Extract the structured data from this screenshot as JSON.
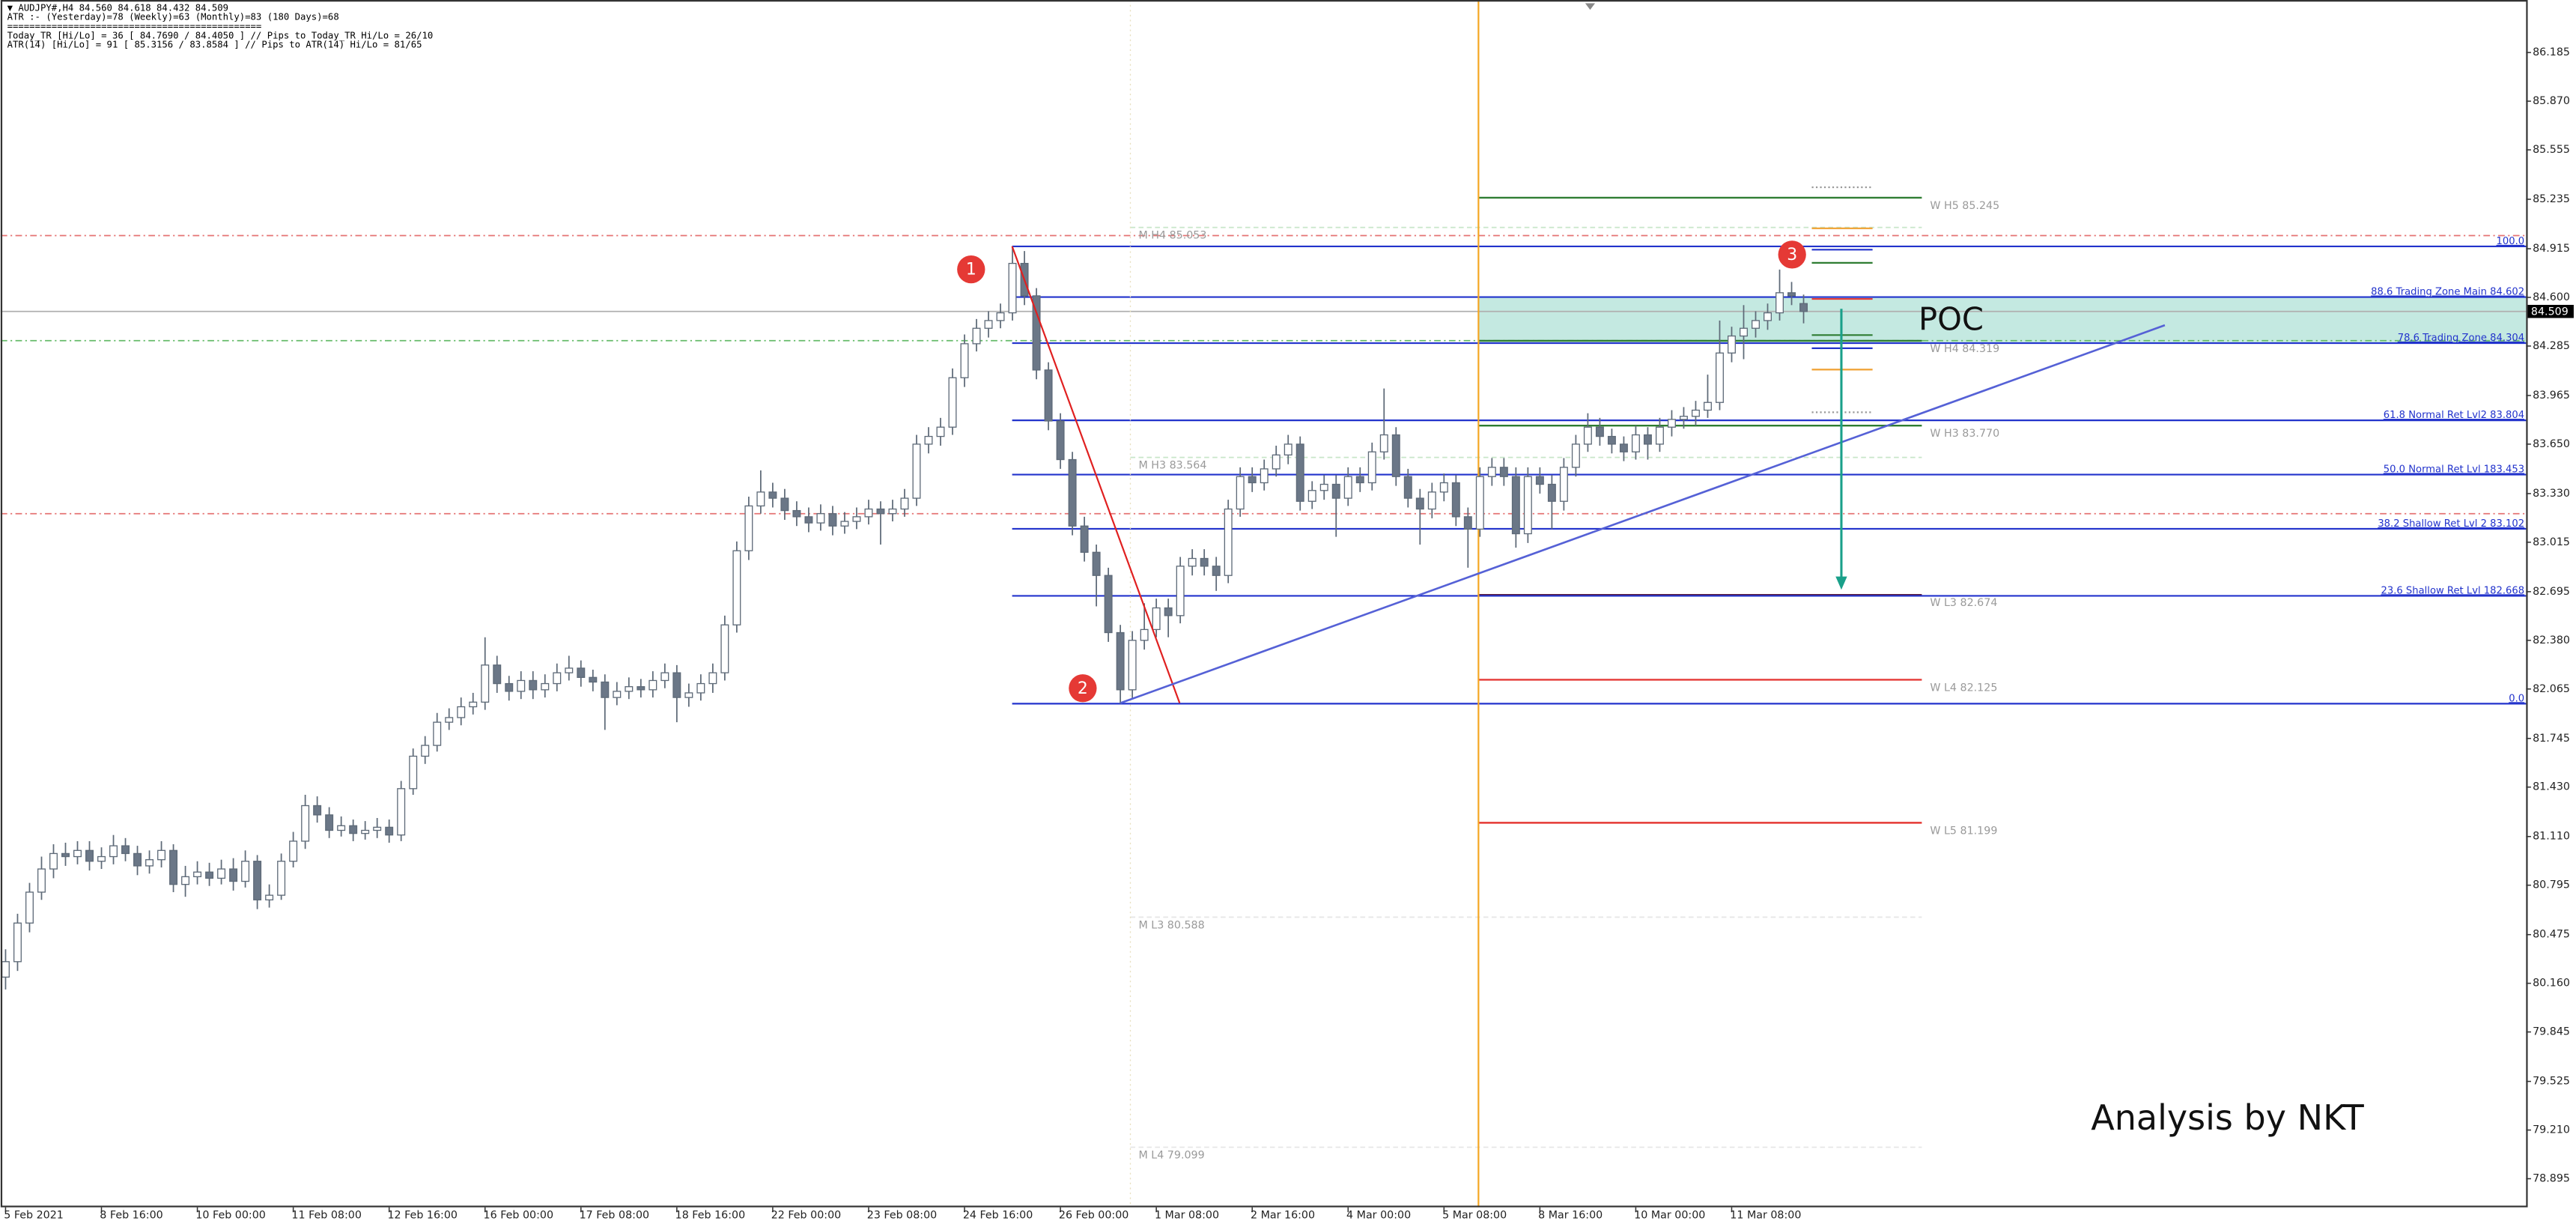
{
  "chart_data": {
    "type": "candlestick",
    "info": [
      "▼ AUDJPY#,H4  84.560 84.618 84.432 84.509",
      "ATR :- (Yesterday)=78     (Weekly)=63     (Monthly)=83     (180 Days)=68",
      "==============================================",
      "Today_TR [Hi/Lo] = 36 [ 84.7690 / 84.4050 ]   // Pips to Today_TR Hi/Lo   = 26/10",
      "ATR(14)     [Hi/Lo] = 91 [ 85.3156 / 83.8584 ]  // Pips to ATR(14) Hi/Lo     = 81/65"
    ],
    "categories": [
      "5 Feb 2021",
      null,
      null,
      null,
      null,
      null,
      null,
      null,
      "8 Feb 16:00",
      null,
      null,
      null,
      null,
      null,
      null,
      null,
      "10 Feb 00:00",
      null,
      null,
      null,
      null,
      null,
      null,
      null,
      "11 Feb 08:00",
      null,
      null,
      null,
      null,
      null,
      null,
      null,
      "12 Feb 16:00",
      null,
      null,
      null,
      null,
      null,
      null,
      null,
      "16 Feb 00:00",
      null,
      null,
      null,
      null,
      null,
      null,
      null,
      "17 Feb 08:00",
      null,
      null,
      null,
      null,
      null,
      null,
      null,
      "18 Feb 16:00",
      null,
      null,
      null,
      null,
      null,
      null,
      null,
      "22 Feb 00:00",
      null,
      null,
      null,
      null,
      null,
      null,
      null,
      "23 Feb 08:00",
      null,
      null,
      null,
      null,
      null,
      null,
      null,
      "24 Feb 16:00",
      null,
      null,
      null,
      null,
      null,
      null,
      null,
      "26 Feb 00:00",
      null,
      null,
      null,
      null,
      null,
      null,
      null,
      "1 Mar 08:00",
      null,
      null,
      null,
      null,
      null,
      null,
      null,
      "2 Mar 16:00",
      null,
      null,
      null,
      null,
      null,
      null,
      null,
      "4 Mar 00:00",
      null,
      null,
      null,
      null,
      null,
      null,
      null,
      "5 Mar 08:00",
      null,
      null,
      null,
      null,
      null,
      null,
      null,
      "8 Mar 16:00",
      null,
      null,
      null,
      null,
      null,
      null,
      null,
      "10 Mar 00:00",
      null,
      null,
      null,
      null,
      null,
      null,
      null,
      "11 Mar 08:00",
      null,
      null,
      null,
      null,
      null,
      null
    ],
    "open": [
      80.2,
      80.3,
      80.55,
      80.75,
      80.9,
      81.0,
      80.98,
      81.02,
      80.95,
      80.98,
      81.05,
      81.0,
      80.92,
      80.96,
      81.02,
      80.8,
      80.85,
      80.88,
      80.84,
      80.9,
      80.82,
      80.95,
      80.7,
      80.73,
      80.95,
      81.08,
      81.31,
      81.25,
      81.15,
      81.18,
      81.13,
      81.15,
      81.17,
      81.12,
      81.42,
      81.63,
      81.7,
      81.85,
      81.88,
      81.95,
      81.98,
      82.22,
      82.1,
      82.05,
      82.12,
      82.06,
      82.1,
      82.17,
      82.2,
      82.14,
      82.11,
      82.01,
      82.05,
      82.08,
      82.06,
      82.12,
      82.17,
      82.01,
      82.04,
      82.1,
      82.17,
      82.48,
      82.96,
      83.25,
      83.34,
      83.3,
      83.22,
      83.18,
      83.14,
      83.2,
      83.12,
      83.15,
      83.18,
      83.23,
      83.2,
      83.23,
      83.3,
      83.65,
      83.7,
      83.76,
      84.08,
      84.3,
      84.4,
      84.45,
      84.5,
      84.82,
      84.61,
      84.13,
      83.8,
      83.55,
      83.12,
      82.95,
      82.8,
      82.43,
      82.06,
      82.38,
      82.45,
      82.59,
      82.54,
      82.86,
      82.91,
      82.86,
      82.8,
      83.23,
      83.44,
      83.4,
      83.49,
      83.58,
      83.65,
      83.28,
      83.35,
      83.39,
      83.3,
      83.44,
      83.4,
      83.6,
      83.71,
      83.44,
      83.3,
      83.23,
      83.34,
      83.4,
      83.18,
      83.1,
      83.44,
      83.5,
      83.44,
      83.07,
      83.44,
      83.39,
      83.28,
      83.5,
      83.65,
      83.76,
      83.7,
      83.65,
      83.6,
      83.71,
      83.65,
      83.76,
      83.81,
      83.83,
      83.87,
      83.92,
      84.24,
      84.35,
      84.4,
      84.45,
      84.5,
      84.63,
      84.56
    ],
    "high": [
      80.38,
      80.61,
      80.81,
      80.98,
      81.06,
      81.07,
      81.08,
      81.08,
      81.04,
      81.12,
      81.1,
      81.05,
      81.02,
      81.08,
      81.06,
      80.92,
      80.95,
      80.94,
      80.96,
      80.97,
      81.02,
      80.99,
      80.8,
      81.0,
      81.14,
      81.38,
      81.37,
      81.3,
      81.24,
      81.22,
      81.21,
      81.23,
      81.22,
      81.47,
      81.68,
      81.76,
      81.91,
      81.94,
      82.01,
      82.04,
      82.4,
      82.28,
      82.15,
      82.18,
      82.18,
      82.16,
      82.23,
      82.28,
      82.25,
      82.19,
      82.16,
      82.11,
      82.14,
      82.13,
      82.18,
      82.23,
      82.22,
      82.1,
      82.16,
      82.23,
      82.54,
      83.02,
      83.31,
      83.48,
      83.4,
      83.36,
      83.28,
      83.24,
      83.26,
      83.25,
      83.21,
      83.24,
      83.29,
      83.28,
      83.29,
      83.36,
      83.71,
      83.76,
      83.82,
      84.14,
      84.36,
      84.46,
      84.51,
      84.56,
      84.93,
      84.9,
      84.66,
      84.18,
      83.85,
      83.6,
      83.18,
      83.0,
      82.85,
      82.48,
      82.44,
      82.62,
      82.65,
      82.65,
      82.92,
      82.97,
      82.97,
      82.92,
      83.29,
      83.5,
      83.5,
      83.55,
      83.64,
      83.71,
      83.7,
      83.41,
      83.45,
      83.45,
      83.5,
      83.5,
      83.66,
      84.01,
      83.76,
      83.49,
      83.36,
      83.4,
      83.46,
      83.45,
      83.24,
      83.5,
      83.56,
      83.56,
      83.5,
      83.5,
      83.5,
      83.45,
      83.56,
      83.71,
      83.85,
      83.82,
      83.75,
      83.7,
      83.77,
      83.76,
      83.82,
      83.87,
      83.89,
      83.93,
      84.1,
      84.45,
      84.41,
      84.55,
      84.51,
      84.56,
      84.78,
      84.7,
      84.618
    ],
    "low": [
      80.12,
      80.24,
      80.49,
      80.7,
      80.84,
      80.92,
      80.93,
      80.89,
      80.9,
      80.93,
      80.95,
      80.86,
      80.87,
      80.91,
      80.75,
      80.72,
      80.8,
      80.79,
      80.8,
      80.76,
      80.78,
      80.64,
      80.65,
      80.7,
      80.91,
      81.03,
      81.2,
      81.1,
      81.11,
      81.08,
      81.09,
      81.1,
      81.07,
      81.08,
      81.38,
      81.58,
      81.66,
      81.8,
      81.83,
      81.9,
      81.93,
      82.04,
      81.99,
      82.0,
      82.0,
      82.01,
      82.05,
      82.12,
      82.08,
      82.05,
      81.8,
      81.96,
      82.0,
      82.01,
      82.01,
      82.07,
      81.85,
      81.95,
      81.99,
      82.04,
      82.12,
      82.43,
      82.9,
      83.2,
      83.24,
      83.16,
      83.12,
      83.08,
      83.09,
      83.06,
      83.07,
      83.1,
      83.13,
      83.0,
      83.15,
      83.18,
      83.25,
      83.59,
      83.64,
      83.71,
      84.02,
      84.25,
      84.34,
      84.4,
      84.45,
      84.55,
      84.07,
      83.74,
      83.49,
      83.06,
      82.89,
      82.6,
      82.37,
      81.97,
      82.0,
      82.32,
      82.4,
      82.4,
      82.49,
      82.8,
      82.8,
      82.7,
      82.75,
      83.18,
      83.34,
      83.35,
      83.44,
      83.52,
      83.22,
      83.23,
      83.29,
      83.05,
      83.25,
      83.34,
      83.35,
      83.55,
      83.38,
      83.24,
      83.0,
      83.17,
      83.28,
      83.12,
      82.85,
      83.05,
      83.38,
      83.38,
      82.98,
      83.01,
      83.33,
      83.1,
      83.22,
      83.44,
      83.6,
      83.64,
      83.59,
      83.54,
      83.55,
      83.55,
      83.6,
      83.7,
      83.75,
      83.77,
      83.82,
      83.87,
      84.18,
      84.2,
      84.34,
      84.39,
      84.45,
      84.55,
      84.432
    ],
    "close": [
      80.3,
      80.55,
      80.75,
      80.9,
      81.0,
      80.98,
      81.02,
      80.95,
      80.98,
      81.05,
      81.0,
      80.92,
      80.96,
      81.02,
      80.8,
      80.85,
      80.88,
      80.84,
      80.9,
      80.82,
      80.95,
      80.7,
      80.73,
      80.95,
      81.08,
      81.31,
      81.25,
      81.15,
      81.18,
      81.13,
      81.15,
      81.17,
      81.12,
      81.42,
      81.63,
      81.7,
      81.85,
      81.88,
      81.95,
      81.98,
      82.22,
      82.1,
      82.05,
      82.12,
      82.06,
      82.1,
      82.17,
      82.2,
      82.14,
      82.11,
      82.01,
      82.05,
      82.08,
      82.06,
      82.12,
      82.17,
      82.01,
      82.04,
      82.1,
      82.17,
      82.48,
      82.96,
      83.25,
      83.34,
      83.3,
      83.22,
      83.18,
      83.14,
      83.2,
      83.12,
      83.15,
      83.18,
      83.23,
      83.2,
      83.23,
      83.3,
      83.65,
      83.7,
      83.76,
      84.08,
      84.3,
      84.4,
      84.45,
      84.5,
      84.82,
      84.61,
      84.13,
      83.8,
      83.55,
      83.12,
      82.95,
      82.8,
      82.43,
      82.06,
      82.38,
      82.45,
      82.59,
      82.54,
      82.86,
      82.91,
      82.86,
      82.8,
      83.23,
      83.44,
      83.4,
      83.49,
      83.58,
      83.65,
      83.28,
      83.35,
      83.39,
      83.3,
      83.44,
      83.4,
      83.6,
      83.71,
      83.44,
      83.3,
      83.23,
      83.34,
      83.4,
      83.18,
      83.1,
      83.44,
      83.5,
      83.44,
      83.07,
      83.44,
      83.39,
      83.28,
      83.5,
      83.65,
      83.76,
      83.7,
      83.65,
      83.6,
      83.71,
      83.65,
      83.76,
      83.81,
      83.83,
      83.87,
      83.92,
      84.24,
      84.35,
      84.4,
      84.45,
      84.5,
      84.63,
      84.61,
      84.509
    ],
    "up_color": "#ffffff",
    "down_color": "#6b7787",
    "edge_color": "#5e6a78",
    "ylim": [
      78.71,
      86.525
    ],
    "yticks": [
      86.185,
      {
        "value": 85.87,
        "label": "85.870"
      },
      85.555,
      85.235,
      84.915,
      {
        "value": 84.6,
        "label": "84.600"
      },
      84.285,
      83.965,
      {
        "value": 83.65,
        "label": "83.650"
      },
      {
        "value": 83.33,
        "label": "83.330"
      },
      83.015,
      82.695,
      {
        "value": 82.38,
        "label": "82.380"
      },
      82.065,
      81.745,
      {
        "value": 81.43,
        "label": "81.430"
      },
      {
        "value": 81.11,
        "label": "81.110"
      },
      80.795,
      80.475,
      {
        "value": 80.16,
        "label": "80.160"
      },
      79.845,
      79.525,
      {
        "value": 79.21,
        "label": "79.210"
      },
      78.895
    ],
    "grid": false,
    "last_price": 84.509,
    "zone": {
      "text": "POC",
      "top": 84.602,
      "bottom": 84.304,
      "color": "#c4e9e1"
    },
    "ref_lines": [
      {
        "price": 85.0,
        "color": "#e57373"
      },
      {
        "price": 83.2,
        "color": "#e57373"
      },
      {
        "price": 84.32,
        "color": "#66bb6a"
      }
    ],
    "fib_levels": [
      {
        "text": "100.0",
        "price": 84.93
      },
      {
        "text": "88.6 Trading Zone Main 84.602",
        "price": 84.602
      },
      {
        "text": "78.6 Trading Zone 84.304",
        "price": 84.304
      },
      {
        "text": "61.8 Normal Ret Lvl2 83.804",
        "price": 83.804
      },
      {
        "text": "50.0 Normal Ret Lvl 183.453",
        "price": 83.453
      },
      {
        "text": "38.2 Shallow Ret Lvl 2 83.102",
        "price": 83.102
      },
      {
        "text": "23.6 Shallow Ret Lvl 182.668",
        "price": 82.668
      },
      {
        "text": "0.0",
        "price": 81.97
      }
    ],
    "fib_color": "#2233cc",
    "pivots": [
      {
        "text": "W H5 85.245",
        "price": 85.245,
        "color": "#2e7d32",
        "style": "solid"
      },
      {
        "text": "W H4 84.319",
        "price": 84.319,
        "color": "#2e7d32",
        "style": "solid"
      },
      {
        "text": "W H3 83.770",
        "price": 83.77,
        "color": "#2e7d32",
        "style": "solid"
      },
      {
        "text": "W L3 82.674",
        "price": 82.674,
        "color": "#5a1a3a",
        "style": "solid"
      },
      {
        "text": "W L4 82.125",
        "price": 82.125,
        "color": "#e53935",
        "style": "solid"
      },
      {
        "text": "W L5 81.199",
        "price": 81.199,
        "color": "#e53935",
        "style": "solid"
      },
      {
        "text": "M H4 85.053",
        "price": 85.053,
        "color": "#c8e6c9",
        "style": "dashed"
      },
      {
        "text": "M H3 83.564",
        "price": 83.564,
        "color": "#c8e6c9",
        "style": "dashed"
      },
      {
        "text": "M L3 80.588",
        "price": 80.588,
        "color": "#e6e6e6",
        "style": "dashed"
      },
      {
        "text": "M L4 79.099",
        "price": 79.099,
        "color": "#e6e6e6",
        "style": "dashed"
      }
    ],
    "markers": [
      "1",
      "2",
      "3"
    ],
    "signature": "Analysis by NKT"
  }
}
